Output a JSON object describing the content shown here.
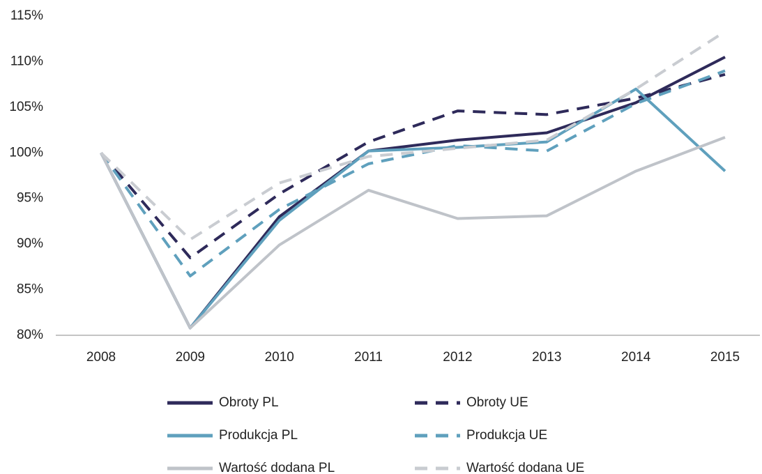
{
  "chart_data": {
    "type": "line",
    "x": [
      "2008",
      "2009",
      "2010",
      "2011",
      "2012",
      "2013",
      "2014",
      "2015"
    ],
    "series": [
      {
        "name": "Obroty PL",
        "color": "#2e2a5a",
        "dashed": false,
        "values": [
          100,
          80.8,
          93.0,
          100.2,
          101.4,
          102.2,
          105.5,
          110.5
        ]
      },
      {
        "name": "Obroty UE",
        "color": "#2e2a5a",
        "dashed": true,
        "values": [
          100,
          88.5,
          95.5,
          101.2,
          104.6,
          104.2,
          106.0,
          108.6
        ]
      },
      {
        "name": "Produkcja PL",
        "color": "#5fa0bd",
        "dashed": false,
        "values": [
          100,
          80.8,
          92.6,
          100.2,
          100.6,
          101.2,
          107.0,
          98.0
        ]
      },
      {
        "name": "Produkcja UE",
        "color": "#5fa0bd",
        "dashed": true,
        "values": [
          100,
          86.5,
          93.8,
          98.8,
          100.8,
          100.2,
          105.4,
          109.0
        ]
      },
      {
        "name": "Wartość dodana PL",
        "color": "#bfc3c9",
        "dashed": false,
        "values": [
          100,
          80.8,
          89.9,
          95.9,
          92.8,
          93.1,
          98.0,
          101.7
        ]
      },
      {
        "name": "Wartość dodana UE",
        "color": "#c9ccd1",
        "dashed": true,
        "values": [
          100,
          90.5,
          96.7,
          99.6,
          100.5,
          101.4,
          107.0,
          113.3
        ]
      }
    ],
    "ylim": [
      80,
      115
    ],
    "yticks": [
      {
        "value": 80,
        "label": "80%"
      },
      {
        "value": 85,
        "label": "85%"
      },
      {
        "value": 90,
        "label": "90%"
      },
      {
        "value": 95,
        "label": "95%"
      },
      {
        "value": 100,
        "label": "100%"
      },
      {
        "value": 105,
        "label": "105%"
      },
      {
        "value": 110,
        "label": "110%"
      },
      {
        "value": 115,
        "label": "115%"
      }
    ],
    "grid": false,
    "legend": "bottom"
  }
}
